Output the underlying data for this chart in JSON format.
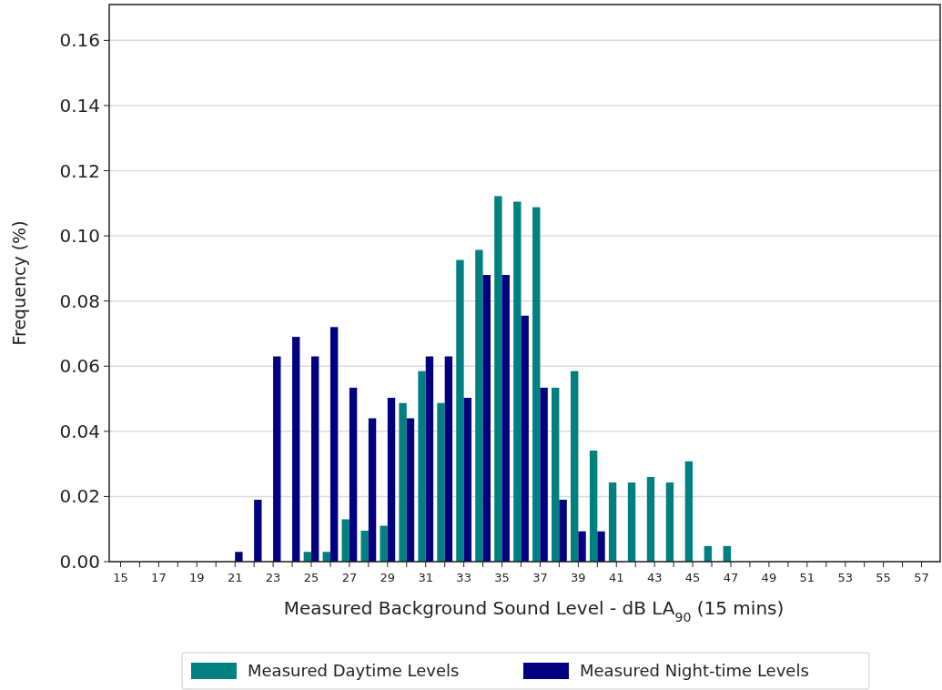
{
  "chart_data": {
    "type": "bar",
    "xlabel": "Measured Background Sound Level - dB LA$_{90}$ (15 mins)",
    "ylabel": "Frequency (%)",
    "categories": [
      "15",
      null,
      "17",
      null,
      "19",
      null,
      "21",
      null,
      "23",
      null,
      "25",
      null,
      "27",
      null,
      "29",
      null,
      "31",
      null,
      "33",
      null,
      "35",
      null,
      "37",
      null,
      "39",
      null,
      "41",
      null,
      "43",
      null,
      "45",
      null,
      "47",
      null,
      "49",
      null,
      "51",
      null,
      "53",
      null,
      "55",
      null,
      "57"
    ],
    "series": [
      {
        "name": "Measured Daytime Levels",
        "color": "#008080",
        "values": [
          0,
          0,
          0,
          0,
          0,
          0,
          0,
          0,
          0,
          0,
          0.003,
          0.003,
          0.013,
          0.0095,
          0.011,
          0.0487,
          0.0585,
          0.0487,
          0.0926,
          0.0957,
          0.1122,
          0.1105,
          0.1088,
          0.0534,
          0.0585,
          0.0341,
          0.0243,
          0.0243,
          0.026,
          0.0243,
          0.0308,
          0.0048,
          0.0048,
          0,
          0,
          0,
          0,
          0,
          0,
          0,
          0,
          0,
          0
        ]
      },
      {
        "name": "Measured Night-time Levels",
        "color": "#000080",
        "values": [
          0,
          0,
          0,
          0,
          0,
          0,
          0.003,
          0.019,
          0.063,
          0.069,
          0.063,
          0.072,
          0.0534,
          0.044,
          0.0503,
          0.044,
          0.063,
          0.063,
          0.0503,
          0.088,
          0.088,
          0.0755,
          0.0534,
          0.019,
          0.0093,
          0.0093,
          0,
          0,
          0,
          0,
          0,
          0,
          0,
          0,
          0,
          0,
          0,
          0,
          0,
          0,
          0,
          0,
          0
        ]
      }
    ],
    "ylim": [
      0,
      0.171
    ],
    "yticks": [
      {
        "value": 0,
        "label": "0.00"
      },
      {
        "value": 0.02,
        "label": "0.02"
      },
      {
        "value": 0.04,
        "label": "0.04"
      },
      {
        "value": 0.06,
        "label": "0.06"
      },
      {
        "value": 0.08,
        "label": "0.08"
      },
      {
        "value": 0.1,
        "label": "0.10"
      },
      {
        "value": 0.12,
        "label": "0.12"
      },
      {
        "value": 0.14,
        "label": "0.14"
      },
      {
        "value": 0.16,
        "label": "0.16"
      }
    ],
    "grid": "y",
    "legend": "bottom"
  }
}
